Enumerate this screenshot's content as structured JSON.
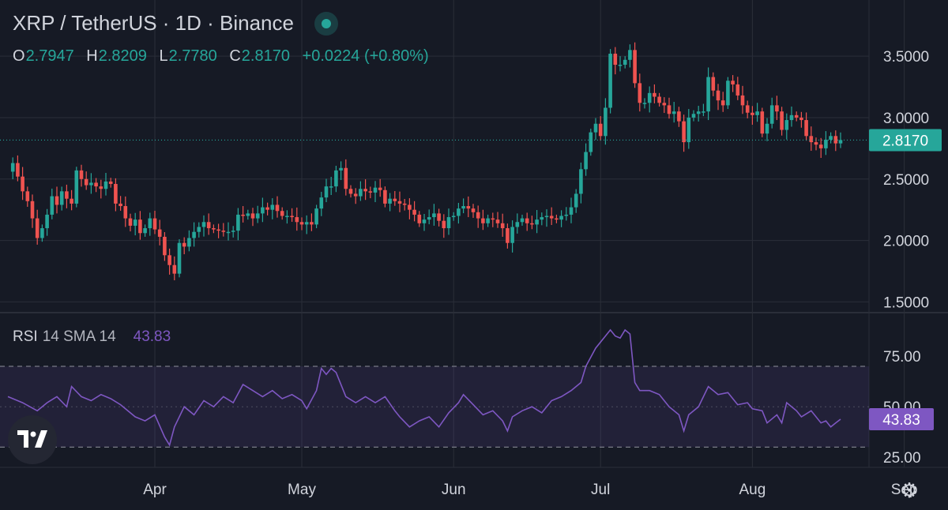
{
  "header": {
    "symbol": "XRP",
    "quote": "TetherUS",
    "interval": "1D",
    "exchange": "Binance",
    "title": "XRP / TetherUS · 1D · Binance"
  },
  "ohlc": {
    "o_label": "O",
    "o": "2.7947",
    "h_label": "H",
    "h": "2.8209",
    "l_label": "L",
    "l": "2.7780",
    "c_label": "C",
    "c": "2.8170",
    "change": "+0.0224 (+0.80%)"
  },
  "rsi_legend": {
    "name": "RSI",
    "params": "14 SMA 14",
    "value": "43.83"
  },
  "colors": {
    "background": "#161a25",
    "up": "#26a69a",
    "down": "#ef5350",
    "rsi_line": "#7e57c2",
    "grid": "#2a2e39"
  },
  "icons": {
    "logo": "tradingview-logo-icon",
    "settings": "gear-icon",
    "live": "live-dot-icon"
  },
  "chart_data": [
    {
      "type": "candlestick",
      "title": "XRP / TetherUS · 1D · Binance",
      "ylim": [
        1.4,
        3.7
      ],
      "y_ticks": [
        "3.5000",
        "3.0000",
        "2.5000",
        "2.0000",
        "1.5000"
      ],
      "y_tick_values": [
        3.5,
        3.0,
        2.5,
        2.0,
        1.5
      ],
      "x_ticks": [
        "Apr",
        "May",
        "Jun",
        "Jul",
        "Aug",
        "Sep"
      ],
      "x_tick_positions": [
        30,
        60,
        91,
        121,
        152,
        183
      ],
      "x_unit": "days since Mar 1",
      "last_price": 2.817,
      "last_price_label": "2.8170",
      "close_path": [
        [
          0,
          2.56
        ],
        [
          1,
          2.63
        ],
        [
          2,
          2.52
        ],
        [
          3,
          2.4
        ],
        [
          4,
          2.32
        ],
        [
          5,
          2.18
        ],
        [
          6,
          2.02
        ],
        [
          7,
          2.1
        ],
        [
          8,
          2.21
        ],
        [
          9,
          2.36
        ],
        [
          10,
          2.29
        ],
        [
          11,
          2.4
        ],
        [
          12,
          2.34
        ],
        [
          13,
          2.3
        ],
        [
          14,
          2.57
        ],
        [
          15,
          2.5
        ],
        [
          16,
          2.45
        ],
        [
          17,
          2.47
        ],
        [
          18,
          2.44
        ],
        [
          19,
          2.42
        ],
        [
          20,
          2.48
        ],
        [
          21,
          2.46
        ],
        [
          22,
          2.3
        ],
        [
          23,
          2.28
        ],
        [
          24,
          2.18
        ],
        [
          25,
          2.12
        ],
        [
          26,
          2.17
        ],
        [
          27,
          2.06
        ],
        [
          28,
          2.1
        ],
        [
          29,
          2.18
        ],
        [
          30,
          2.09
        ],
        [
          31,
          2.03
        ],
        [
          32,
          1.88
        ],
        [
          33,
          1.8
        ],
        [
          34,
          1.73
        ],
        [
          35,
          1.98
        ],
        [
          36,
          1.95
        ],
        [
          37,
          2.02
        ],
        [
          38,
          2.07
        ],
        [
          39,
          2.11
        ],
        [
          40,
          2.15
        ],
        [
          41,
          2.1
        ],
        [
          42,
          2.09
        ],
        [
          43,
          2.08
        ],
        [
          44,
          2.07
        ],
        [
          45,
          2.07
        ],
        [
          46,
          2.08
        ],
        [
          47,
          2.21
        ],
        [
          48,
          2.2
        ],
        [
          49,
          2.22
        ],
        [
          50,
          2.18
        ],
        [
          51,
          2.22
        ],
        [
          52,
          2.27
        ],
        [
          53,
          2.25
        ],
        [
          54,
          2.29
        ],
        [
          55,
          2.24
        ],
        [
          56,
          2.2
        ],
        [
          57,
          2.2
        ],
        [
          58,
          2.19
        ],
        [
          59,
          2.15
        ],
        [
          60,
          2.13
        ],
        [
          61,
          2.15
        ],
        [
          62,
          2.13
        ],
        [
          63,
          2.26
        ],
        [
          64,
          2.35
        ],
        [
          65,
          2.44
        ],
        [
          66,
          2.44
        ],
        [
          67,
          2.57
        ],
        [
          68,
          2.59
        ],
        [
          69,
          2.42
        ],
        [
          70,
          2.38
        ],
        [
          71,
          2.36
        ],
        [
          72,
          2.42
        ],
        [
          73,
          2.4
        ],
        [
          74,
          2.39
        ],
        [
          75,
          2.43
        ],
        [
          76,
          2.41
        ],
        [
          77,
          2.3
        ],
        [
          78,
          2.34
        ],
        [
          79,
          2.32
        ],
        [
          80,
          2.3
        ],
        [
          81,
          2.29
        ],
        [
          82,
          2.25
        ],
        [
          83,
          2.21
        ],
        [
          84,
          2.14
        ],
        [
          85,
          2.17
        ],
        [
          86,
          2.19
        ],
        [
          87,
          2.22
        ],
        [
          88,
          2.16
        ],
        [
          89,
          2.1
        ],
        [
          90,
          2.19
        ],
        [
          91,
          2.2
        ],
        [
          92,
          2.26
        ],
        [
          93,
          2.28
        ],
        [
          94,
          2.26
        ],
        [
          95,
          2.23
        ],
        [
          96,
          2.18
        ],
        [
          97,
          2.14
        ],
        [
          98,
          2.18
        ],
        [
          99,
          2.17
        ],
        [
          100,
          2.14
        ],
        [
          101,
          2.1
        ],
        [
          102,
          1.98
        ],
        [
          103,
          2.11
        ],
        [
          104,
          2.15
        ],
        [
          105,
          2.18
        ],
        [
          106,
          2.14
        ],
        [
          107,
          2.13
        ],
        [
          108,
          2.17
        ],
        [
          109,
          2.19
        ],
        [
          110,
          2.2
        ],
        [
          111,
          2.18
        ],
        [
          112,
          2.17
        ],
        [
          113,
          2.2
        ],
        [
          114,
          2.21
        ],
        [
          115,
          2.27
        ],
        [
          116,
          2.38
        ],
        [
          117,
          2.58
        ],
        [
          118,
          2.72
        ],
        [
          119,
          2.88
        ],
        [
          120,
          2.95
        ],
        [
          121,
          2.85
        ],
        [
          122,
          3.08
        ],
        [
          123,
          3.52
        ],
        [
          124,
          3.43
        ],
        [
          125,
          3.43
        ],
        [
          126,
          3.47
        ],
        [
          127,
          3.55
        ],
        [
          128,
          3.28
        ],
        [
          129,
          3.12
        ],
        [
          130,
          3.12
        ],
        [
          131,
          3.2
        ],
        [
          132,
          3.17
        ],
        [
          133,
          3.12
        ],
        [
          134,
          3.1
        ],
        [
          135,
          3.03
        ],
        [
          136,
          3.05
        ],
        [
          137,
          2.97
        ],
        [
          138,
          2.8
        ],
        [
          139,
          3.0
        ],
        [
          140,
          3.03
        ],
        [
          141,
          3.05
        ],
        [
          142,
          3.05
        ],
        [
          143,
          3.33
        ],
        [
          144,
          3.22
        ],
        [
          145,
          3.14
        ],
        [
          146,
          3.1
        ],
        [
          147,
          3.3
        ],
        [
          148,
          3.27
        ],
        [
          149,
          3.18
        ],
        [
          150,
          3.1
        ],
        [
          151,
          3.04
        ],
        [
          152,
          3.02
        ],
        [
          153,
          3.05
        ],
        [
          154,
          2.87
        ],
        [
          155,
          2.95
        ],
        [
          156,
          3.1
        ],
        [
          157,
          3.05
        ],
        [
          158,
          2.9
        ],
        [
          159,
          2.98
        ],
        [
          160,
          3.02
        ],
        [
          161,
          3.0
        ],
        [
          162,
          2.98
        ],
        [
          163,
          2.85
        ],
        [
          164,
          2.8
        ],
        [
          165,
          2.78
        ],
        [
          166,
          2.75
        ],
        [
          167,
          2.82
        ],
        [
          168,
          2.85
        ],
        [
          169,
          2.79
        ],
        [
          170,
          2.817
        ]
      ]
    },
    {
      "type": "line",
      "title": "RSI 14 SMA 14",
      "ylim": [
        20,
        95
      ],
      "y_ticks": [
        "75.00",
        "50.00",
        "25.00"
      ],
      "y_tick_values": [
        75,
        50,
        25
      ],
      "bands": [
        30,
        70
      ],
      "last_value": 43.83,
      "last_value_label": "43.83",
      "line_path": [
        [
          0,
          55
        ],
        [
          3,
          52
        ],
        [
          6,
          48
        ],
        [
          8,
          52
        ],
        [
          10,
          55
        ],
        [
          12,
          50
        ],
        [
          13,
          60
        ],
        [
          15,
          55
        ],
        [
          17,
          53
        ],
        [
          19,
          56
        ],
        [
          21,
          54
        ],
        [
          23,
          51
        ],
        [
          26,
          45
        ],
        [
          28,
          43
        ],
        [
          30,
          46
        ],
        [
          32,
          35
        ],
        [
          33,
          31
        ],
        [
          34,
          40
        ],
        [
          36,
          50
        ],
        [
          38,
          46
        ],
        [
          40,
          53
        ],
        [
          42,
          50
        ],
        [
          44,
          55
        ],
        [
          46,
          52
        ],
        [
          48,
          61
        ],
        [
          50,
          58
        ],
        [
          52,
          55
        ],
        [
          54,
          58
        ],
        [
          56,
          54
        ],
        [
          58,
          56
        ],
        [
          60,
          53
        ],
        [
          61,
          49
        ],
        [
          63,
          58
        ],
        [
          64,
          69
        ],
        [
          65,
          66
        ],
        [
          66,
          69
        ],
        [
          67,
          67
        ],
        [
          69,
          55
        ],
        [
          71,
          52
        ],
        [
          73,
          55
        ],
        [
          75,
          52
        ],
        [
          77,
          55
        ],
        [
          79,
          48
        ],
        [
          80,
          45
        ],
        [
          82,
          40
        ],
        [
          84,
          43
        ],
        [
          86,
          45
        ],
        [
          88,
          40
        ],
        [
          90,
          47
        ],
        [
          92,
          52
        ],
        [
          93,
          56
        ],
        [
          95,
          51
        ],
        [
          97,
          46
        ],
        [
          99,
          48
        ],
        [
          101,
          43
        ],
        [
          102,
          38
        ],
        [
          103,
          45
        ],
        [
          105,
          48
        ],
        [
          107,
          50
        ],
        [
          109,
          47
        ],
        [
          111,
          53
        ],
        [
          113,
          55
        ],
        [
          115,
          58
        ],
        [
          117,
          62
        ],
        [
          118,
          70
        ],
        [
          120,
          79
        ],
        [
          122,
          85
        ],
        [
          123,
          88
        ],
        [
          124,
          85
        ],
        [
          125,
          84
        ],
        [
          126,
          88
        ],
        [
          127,
          86
        ],
        [
          128,
          62
        ],
        [
          129,
          58
        ],
        [
          131,
          58
        ],
        [
          133,
          56
        ],
        [
          135,
          50
        ],
        [
          137,
          46
        ],
        [
          138,
          38
        ],
        [
          139,
          46
        ],
        [
          141,
          50
        ],
        [
          143,
          60
        ],
        [
          145,
          56
        ],
        [
          147,
          57
        ],
        [
          149,
          51
        ],
        [
          151,
          52
        ],
        [
          152,
          49
        ],
        [
          154,
          48
        ],
        [
          155,
          42
        ],
        [
          157,
          46
        ],
        [
          158,
          42
        ],
        [
          159,
          52
        ],
        [
          161,
          48
        ],
        [
          162,
          45
        ],
        [
          164,
          48
        ],
        [
          166,
          42
        ],
        [
          167,
          43
        ],
        [
          168,
          40
        ],
        [
          169,
          42
        ],
        [
          170,
          43.83
        ]
      ]
    }
  ]
}
